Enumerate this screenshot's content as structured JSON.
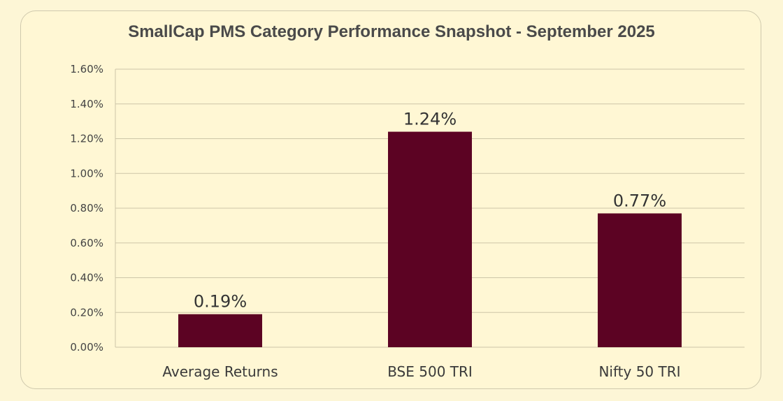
{
  "chart_data": {
    "type": "bar",
    "title": "SmallCap PMS Category Performance Snapshot - September  2025",
    "categories": [
      "Average Returns",
      "BSE 500 TRI",
      "Nifty 50 TRI"
    ],
    "values": [
      0.0019,
      0.0124,
      0.0077
    ],
    "data_labels": [
      "0.19%",
      "1.24%",
      "0.77%"
    ],
    "ylim": [
      0,
      0.016
    ],
    "yticks": [
      0,
      0.002,
      0.004,
      0.006,
      0.008,
      0.01,
      0.012,
      0.014,
      0.016
    ],
    "ytick_labels": [
      "0.00%",
      "0.20%",
      "0.40%",
      "0.60%",
      "0.80%",
      "1.00%",
      "1.20%",
      "1.40%",
      "1.60%"
    ],
    "xlabel": "",
    "ylabel": "",
    "grid": true,
    "colors": {
      "bar": "#5c0323",
      "grid": "#cdc6a8",
      "background": "#fff7d4"
    }
  }
}
